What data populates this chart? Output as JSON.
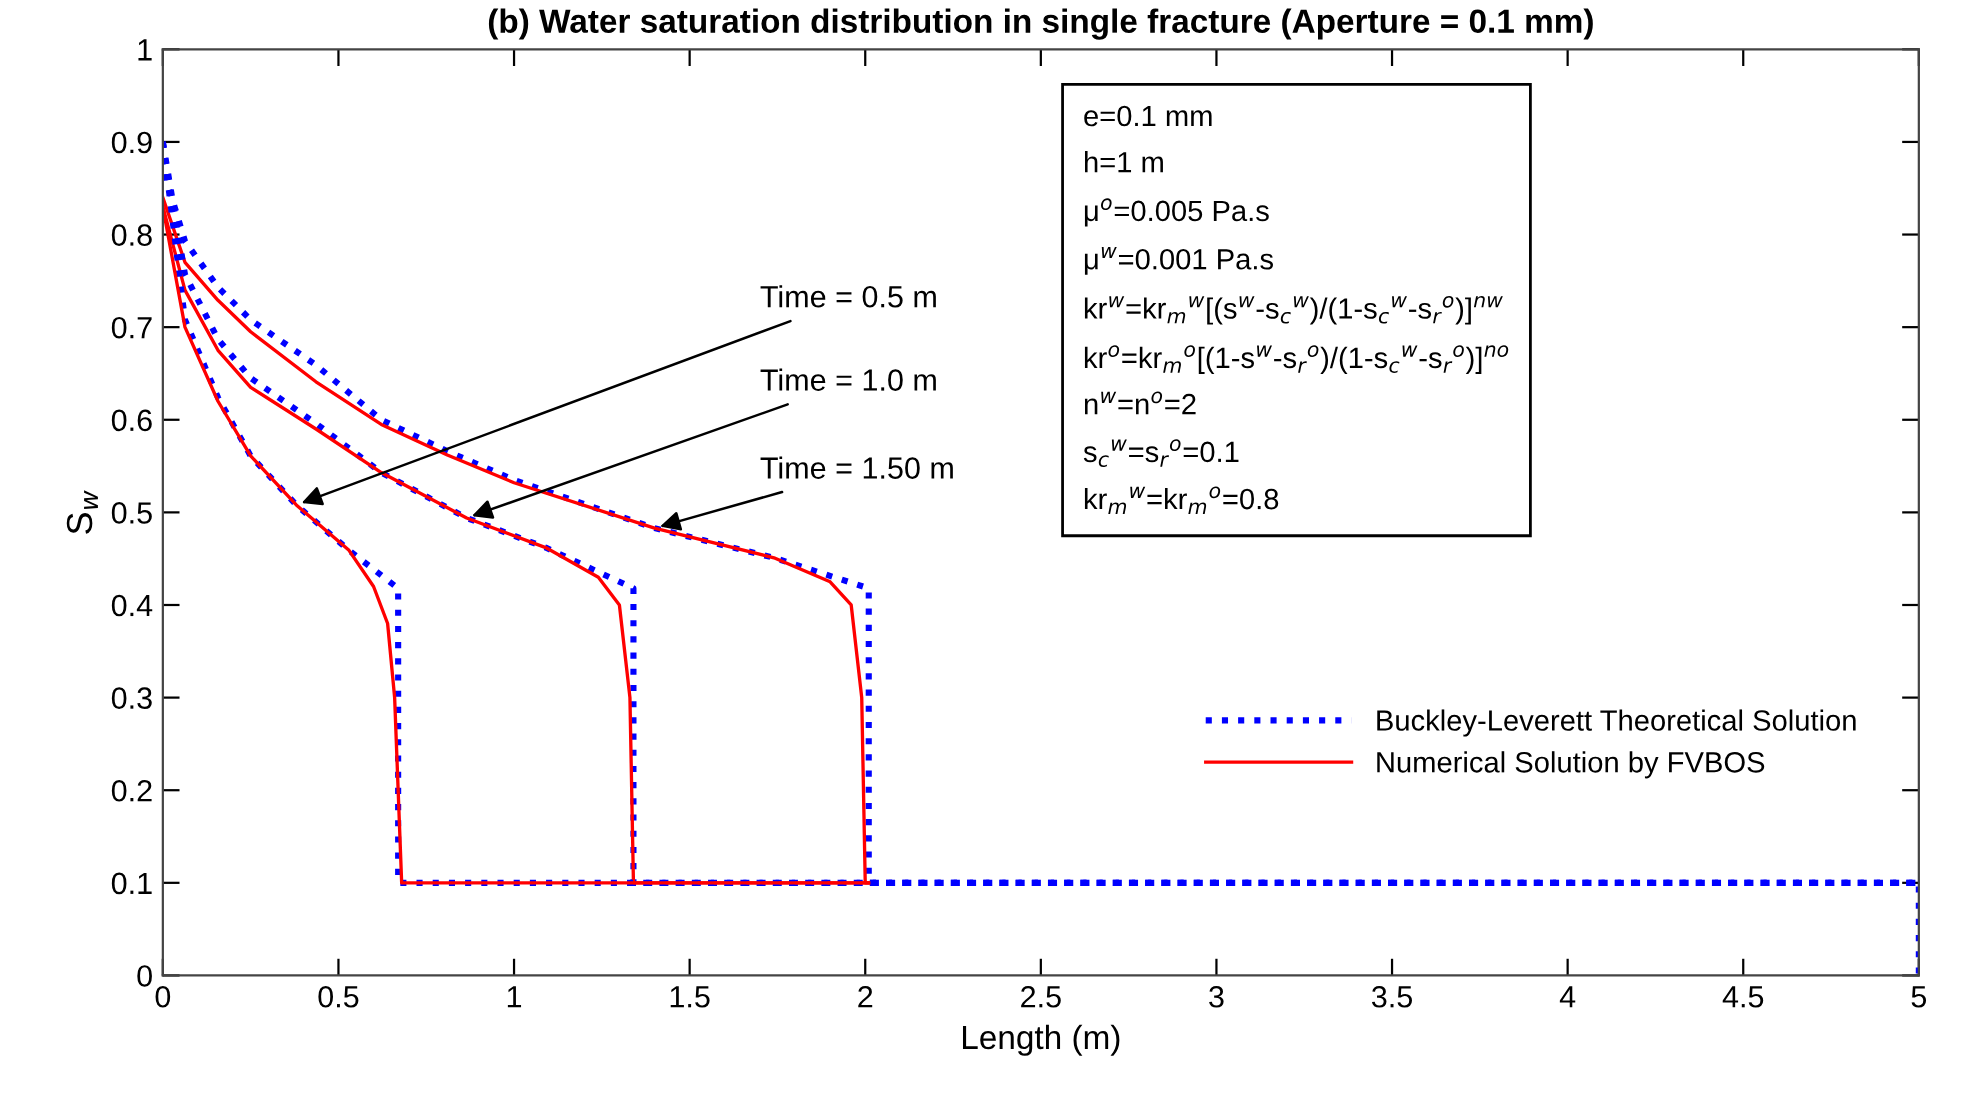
{
  "chart_data": {
    "type": "line",
    "title": "(b) Water saturation distribution in single fracture (Aperture = 0.1 mm)",
    "xlabel": "Length (m)",
    "ylabel": "S$_{w}$",
    "xlim": [
      0,
      5
    ],
    "xticks": [
      0,
      0.5,
      1,
      1.5,
      2,
      2.5,
      3,
      3.5,
      4,
      4.5,
      5
    ],
    "ylim": [
      0,
      1
    ],
    "yticks": [
      0,
      0.1,
      0.2,
      0.3,
      0.4,
      0.5,
      0.6,
      0.7,
      0.8,
      0.9,
      1
    ],
    "grid": false,
    "legend": "right",
    "marker": "none",
    "series": [
      {
        "name": "Buckley-Leverett Theoretical Solution",
        "color": "#0000ff",
        "line_style": "dotted",
        "x": [
          0,
          0.007,
          0.063,
          0.157,
          0.25,
          0.436,
          0.622,
          0.81,
          1.0,
          1.4,
          1.74,
          2.01,
          2.01,
          5,
          5
        ],
        "values": [
          0.9,
          0.863,
          0.793,
          0.743,
          0.708,
          0.659,
          0.6,
          0.566,
          0.535,
          0.483,
          0.451,
          0.418,
          0.1,
          0.1,
          0
        ]
      },
      {
        "name": "Numerical Solution by FVBOS",
        "color": "#ff0000",
        "line_style": "solid",
        "x": [
          0,
          0.063,
          0.157,
          0.25,
          0.436,
          0.622,
          0.81,
          1.0,
          1.4,
          1.74,
          1.9,
          1.96,
          1.99,
          2.0,
          2.01
        ],
        "values": [
          0.84,
          0.77,
          0.729,
          0.695,
          0.641,
          0.595,
          0.562,
          0.532,
          0.483,
          0.451,
          0.425,
          0.4,
          0.3,
          0.1,
          0.1
        ]
      },
      {
        "color": "#0000ff",
        "line_style": "dotted",
        "x": [
          0,
          0.063,
          0.157,
          0.25,
          0.436,
          0.622,
          0.865,
          1.09,
          1.34,
          1.34,
          5
        ],
        "values": [
          0.9,
          0.757,
          0.687,
          0.645,
          0.596,
          0.543,
          0.494,
          0.462,
          0.418,
          0.1,
          0.1
        ]
      },
      {
        "color": "#ff0000",
        "line_style": "solid",
        "x": [
          0,
          0.063,
          0.157,
          0.25,
          0.436,
          0.622,
          0.865,
          1.09,
          1.24,
          1.3,
          1.33,
          1.34,
          2.01
        ],
        "values": [
          0.83,
          0.74,
          0.675,
          0.635,
          0.59,
          0.543,
          0.494,
          0.462,
          0.43,
          0.4,
          0.3,
          0.1,
          0.1
        ]
      },
      {
        "color": "#0000ff",
        "line_style": "dotted",
        "x": [
          0,
          0.063,
          0.157,
          0.25,
          0.38,
          0.53,
          0.67,
          0.67,
          5
        ],
        "values": [
          0.9,
          0.708,
          0.624,
          0.561,
          0.508,
          0.459,
          0.418,
          0.1,
          0.1
        ]
      },
      {
        "color": "#ff0000",
        "line_style": "solid",
        "x": [
          0,
          0.063,
          0.157,
          0.25,
          0.38,
          0.53,
          0.6,
          0.64,
          0.66,
          0.68,
          2.01
        ],
        "values": [
          0.83,
          0.7,
          0.62,
          0.561,
          0.508,
          0.459,
          0.42,
          0.38,
          0.3,
          0.1,
          0.1
        ]
      }
    ],
    "annotations": [
      {
        "text": "Time = 0.5 m",
        "x": 0.38,
        "y": 0.508
      },
      {
        "text": "Time = 1.0 m",
        "x": 0.865,
        "y": 0.494
      },
      {
        "text": "Time = 1.50 m",
        "x": 1.4,
        "y": 0.483
      },
      "e=0.1 mm\nh=1 m\nμ$^{o}$=0.005 Pa.s\nμ$^{w}$=0.001 Pa.s\nkr$^{w}$=kr$_{m}$$^{w}$[(s$^{w}$-s$_{c}$$^{w}$)/(1-s$_{c}$$^{w}$-s$_{r}$$^{o}$)]$^{nw}$\nkr$^{o}$=kr$_{m}$$^{o}$[(1-s$^{w}$-s$_{r}$$^{o}$)/(1-s$_{c}$$^{w}$-s$_{r}$$^{o}$)]$^{no}$\nn$^{w}$=n$^{o}$=2\ns$_{c}$$^{w}$=s$_{r}$$^{o}$=0.1\nkr$_{m}$$^{w}$=kr$_{m}$$^{o}$=0.8"
    ]
  }
}
